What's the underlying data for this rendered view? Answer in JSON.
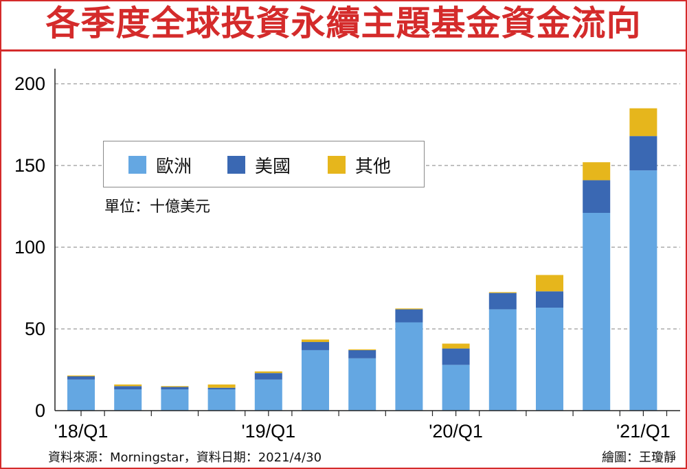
{
  "title": "各季度全球投資永續主題基金資金流向",
  "unit": "單位：十億美元",
  "source": "資料來源：Morningstar，資料日期：2021/4/30",
  "credit": "繪圖：王瓊靜",
  "colors": {
    "frame": "#d42b2b",
    "europe": "#64a7e2",
    "usa": "#3a68b3",
    "other": "#e6b61c"
  },
  "chart_data": {
    "type": "bar",
    "stacked": true,
    "categories": [
      "2018Q1",
      "2018Q2",
      "2018Q3",
      "2018Q4",
      "2019Q1",
      "2019Q2",
      "2019Q3",
      "2019Q4",
      "2020Q1",
      "2020Q2",
      "2020Q3",
      "2020Q4",
      "2021Q1"
    ],
    "x_tick_labels": [
      "'18/Q1",
      "",
      "",
      "",
      "'19/Q1",
      "",
      "",
      "",
      "'20/Q1",
      "",
      "",
      "",
      "'21/Q1"
    ],
    "y_ticks": [
      0,
      50,
      100,
      150,
      200
    ],
    "ylim": [
      0,
      200
    ],
    "grid": "horizontal-dashed",
    "legend_position": "upper-left",
    "series": [
      {
        "name": "歐洲",
        "color": "#64a7e2",
        "values": [
          19,
          13,
          13,
          13,
          19,
          37,
          32,
          54,
          28,
          62,
          63,
          121,
          147
        ]
      },
      {
        "name": "美國",
        "color": "#3a68b3",
        "values": [
          2,
          2,
          1.5,
          1,
          4,
          5,
          5,
          8,
          10,
          10,
          10,
          20,
          21
        ]
      },
      {
        "name": "其他",
        "color": "#e6b61c",
        "values": [
          0.5,
          1,
          0.5,
          2,
          1,
          1.5,
          0.5,
          0.5,
          3,
          0.5,
          10,
          11,
          17
        ]
      }
    ]
  }
}
